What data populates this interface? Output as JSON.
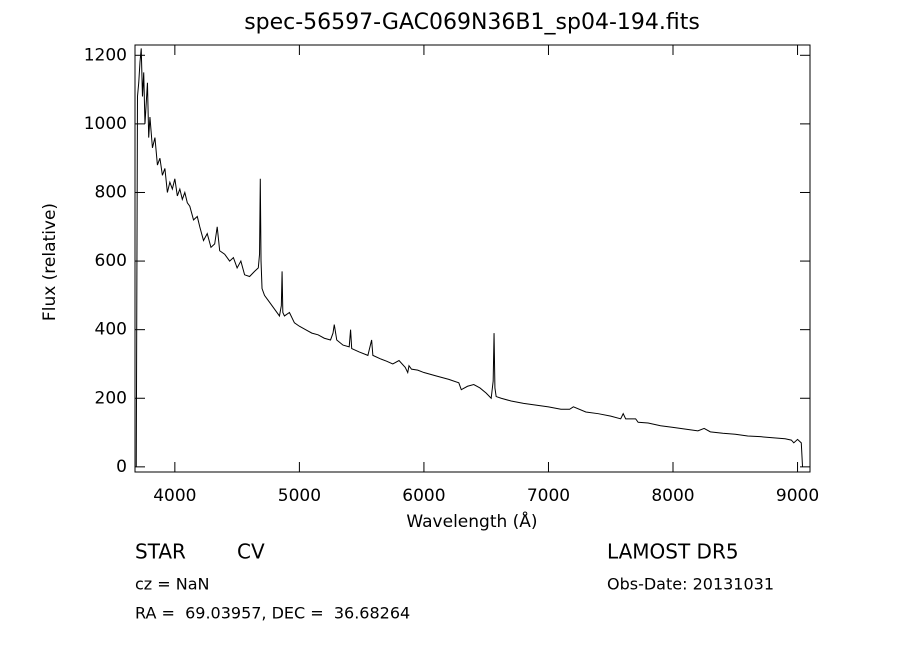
{
  "chart_data": {
    "type": "line",
    "title": "spec-56597-GAC069N36B1_sp04-194.fits",
    "x_label": "Wavelength (Å)",
    "y_label": "Flux (relative)",
    "annotations": [
      "STAR",
      "CV",
      "LAMOST DR5",
      "cz = NaN",
      "Obs-Date: 20131031",
      "RA =  69.03957, DEC =  36.68264"
    ],
    "color": "#000000",
    "xlim": [
      3680,
      9100
    ],
    "xticks": [
      4000,
      5000,
      6000,
      7000,
      8000,
      9000
    ],
    "ylim": [
      -15,
      1230
    ],
    "yticks": [
      0,
      200,
      400,
      600,
      800,
      1000,
      1200
    ],
    "grid": false,
    "x": [
      3690,
      3700,
      3710,
      3720,
      3730,
      3740,
      3750,
      3760,
      3770,
      3780,
      3790,
      3800,
      3820,
      3840,
      3860,
      3880,
      3900,
      3920,
      3940,
      3960,
      3980,
      4000,
      4020,
      4040,
      4060,
      4080,
      4100,
      4120,
      4150,
      4180,
      4200,
      4230,
      4260,
      4290,
      4320,
      4340,
      4360,
      4400,
      4440,
      4470,
      4500,
      4530,
      4560,
      4600,
      4640,
      4670,
      4680,
      4686,
      4692,
      4700,
      4720,
      4760,
      4800,
      4840,
      4855,
      4861,
      4867,
      4880,
      4920,
      4960,
      5000,
      5050,
      5100,
      5150,
      5200,
      5250,
      5270,
      5280,
      5300,
      5350,
      5400,
      5411,
      5420,
      5480,
      5550,
      5580,
      5590,
      5650,
      5700,
      5750,
      5800,
      5850,
      5870,
      5880,
      5900,
      5950,
      6000,
      6100,
      6200,
      6280,
      6300,
      6350,
      6400,
      6450,
      6500,
      6540,
      6556,
      6563,
      6570,
      6580,
      6620,
      6700,
      6800,
      6900,
      7000,
      7100,
      7170,
      7200,
      7300,
      7400,
      7500,
      7580,
      7600,
      7620,
      7700,
      7720,
      7800,
      7900,
      8000,
      8100,
      8200,
      8250,
      8300,
      8400,
      8500,
      8600,
      8700,
      8800,
      8900,
      8950,
      8970,
      9000,
      9030,
      9040
    ],
    "values": [
      0,
      1080,
      1120,
      1180,
      1220,
      1080,
      1150,
      1000,
      1060,
      1120,
      960,
      1020,
      930,
      960,
      880,
      900,
      850,
      870,
      800,
      830,
      810,
      840,
      790,
      810,
      780,
      800,
      770,
      760,
      720,
      730,
      700,
      660,
      680,
      640,
      650,
      700,
      630,
      620,
      600,
      610,
      580,
      600,
      560,
      555,
      570,
      580,
      620,
      840,
      600,
      520,
      500,
      480,
      460,
      440,
      470,
      570,
      450,
      440,
      450,
      420,
      410,
      400,
      390,
      385,
      375,
      370,
      390,
      415,
      370,
      355,
      350,
      400,
      345,
      335,
      325,
      370,
      325,
      315,
      308,
      300,
      310,
      290,
      275,
      295,
      285,
      282,
      275,
      265,
      255,
      245,
      225,
      235,
      240,
      230,
      215,
      200,
      250,
      390,
      230,
      205,
      200,
      192,
      185,
      180,
      175,
      168,
      168,
      175,
      160,
      155,
      148,
      140,
      155,
      140,
      140,
      130,
      128,
      120,
      115,
      110,
      105,
      112,
      102,
      98,
      95,
      90,
      88,
      85,
      82,
      78,
      70,
      80,
      70,
      0
    ]
  }
}
